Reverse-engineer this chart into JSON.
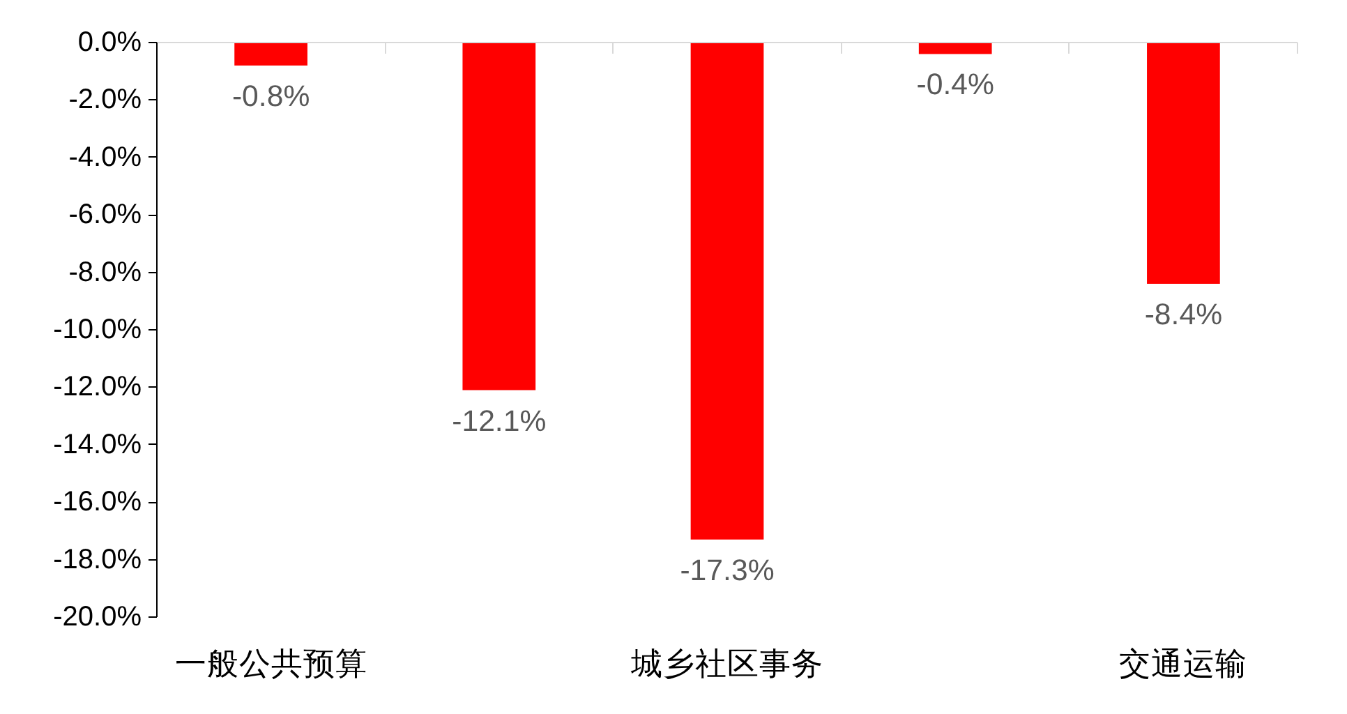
{
  "chart_data": {
    "type": "bar",
    "categories": [
      "一般公共预算",
      null,
      "城乡社区事务",
      null,
      "交通运输"
    ],
    "values": [
      -0.8,
      -12.1,
      -17.3,
      -0.4,
      -8.4
    ],
    "color": "#ff0000",
    "value_labels": [
      "-0.8%",
      "-12.1%",
      "-17.3%",
      "-0.4%",
      "-8.4%"
    ],
    "ylim": [
      -20,
      0
    ],
    "yticks": [
      {
        "value": 0,
        "label": "0.0%"
      },
      {
        "value": -2,
        "label": "-2.0%"
      },
      {
        "value": -4,
        "label": "-4.0%"
      },
      {
        "value": -6,
        "label": "-6.0%"
      },
      {
        "value": -8,
        "label": "-8.0%"
      },
      {
        "value": -10,
        "label": "-10.0%"
      },
      {
        "value": -12,
        "label": "-12.0%"
      },
      {
        "value": -14,
        "label": "-14.0%"
      },
      {
        "value": -16,
        "label": "-16.0%"
      },
      {
        "value": -18,
        "label": "-18.0%"
      },
      {
        "value": -20,
        "label": "-20.0%"
      }
    ],
    "grid": false
  }
}
